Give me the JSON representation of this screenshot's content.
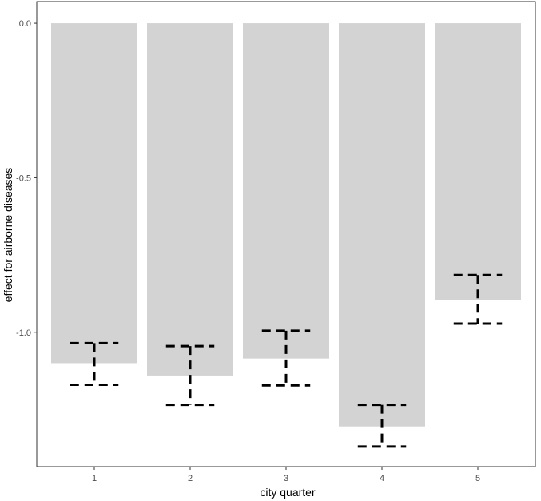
{
  "chart_data": {
    "type": "bar",
    "xlabel": "city quarter",
    "ylabel": "effect for airborne diseases",
    "categories": [
      "1",
      "2",
      "3",
      "4",
      "5"
    ],
    "values": [
      -1.1,
      -1.14,
      -1.085,
      -1.305,
      -0.895
    ],
    "error_bars": {
      "upper": [
        -1.035,
        -1.045,
        -0.995,
        -1.235,
        -0.815
      ],
      "lower": [
        -1.17,
        -1.235,
        -1.172,
        -1.37,
        -0.972
      ]
    },
    "yticks": [
      0.0,
      -0.5,
      -1.0
    ],
    "ytick_labels": [
      "0.0",
      "-0.5",
      "-1.0"
    ],
    "ylim": [
      -1.435,
      0.07
    ],
    "grid": false,
    "colors": {
      "bar": "#d3d3d3",
      "error_bar": "#000000",
      "panel_border": "#333333"
    }
  }
}
